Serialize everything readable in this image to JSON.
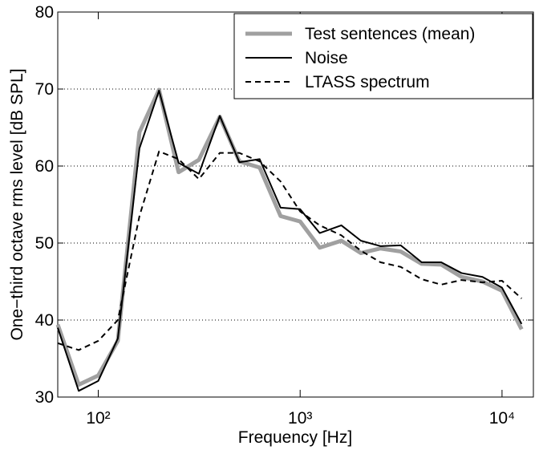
{
  "chart_data": {
    "type": "line",
    "xlabel": "Frequency [Hz]",
    "ylabel": "One−third octave rms level [dB SPL]",
    "x": [
      63,
      80,
      100,
      125,
      160,
      200,
      250,
      315,
      400,
      500,
      630,
      800,
      1000,
      1250,
      1600,
      2000,
      2500,
      3150,
      4000,
      5000,
      6300,
      8000,
      10000,
      12500
    ],
    "series": [
      {
        "name": "Test sentences (mean)",
        "color": "#a0a0a0",
        "width": 5,
        "dash": "none",
        "values": [
          39.4,
          31.6,
          32.8,
          37.3,
          64.4,
          69.9,
          59.2,
          60.8,
          66.4,
          60.6,
          59.8,
          53.5,
          52.8,
          49.4,
          50.3,
          48.7,
          49.3,
          48.9,
          47.3,
          47.2,
          45.6,
          45.0,
          43.8,
          38.8
        ]
      },
      {
        "name": "Noise",
        "color": "#000000",
        "width": 2,
        "dash": "none",
        "values": [
          39.0,
          30.8,
          32.1,
          37.6,
          62.3,
          69.8,
          60.4,
          59.0,
          66.5,
          60.5,
          60.9,
          54.6,
          54.4,
          51.3,
          52.3,
          50.3,
          49.6,
          49.7,
          47.5,
          47.5,
          46.1,
          45.6,
          44.2,
          39.5
        ]
      },
      {
        "name": "LTASS spectrum",
        "color": "#000000",
        "width": 2,
        "dash": "7,5",
        "values": [
          37.0,
          36.1,
          37.3,
          40.0,
          53.5,
          61.9,
          60.9,
          58.3,
          61.7,
          61.7,
          60.6,
          58.0,
          54.1,
          52.3,
          51.0,
          49.0,
          47.5,
          46.9,
          45.3,
          44.6,
          45.2,
          44.9,
          45.1,
          42.8
        ]
      }
    ],
    "xscale": "log",
    "xlim": [
      63,
      14300
    ],
    "xticks": [
      {
        "value": 100,
        "label": "10²"
      },
      {
        "value": 1000,
        "label": "10³"
      },
      {
        "value": 10000,
        "label": "10⁴"
      }
    ],
    "ylim": [
      30,
      80
    ],
    "yticks": [
      30,
      40,
      50,
      60,
      70,
      80
    ],
    "grid": true,
    "legend": "upper right"
  }
}
